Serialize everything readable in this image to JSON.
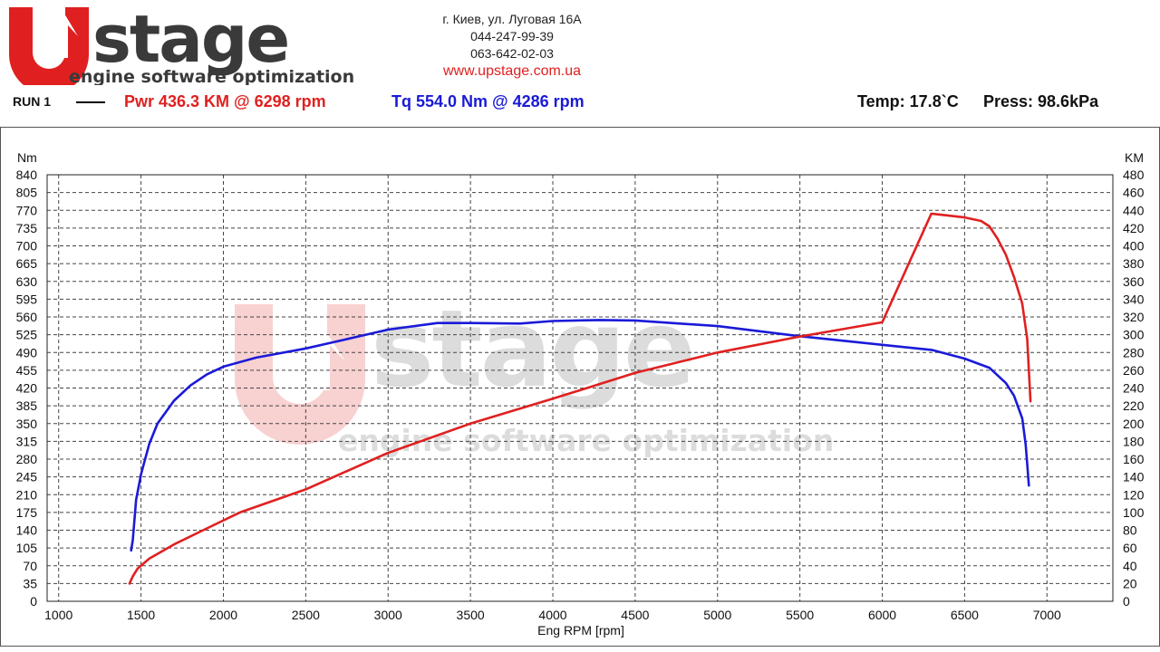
{
  "header": {
    "logo_main": "UPstage",
    "logo_sub": "engine software optimization",
    "address": "г. Киев, ул. Луговая 16А",
    "phone1": "044-247-99-39",
    "phone2": "063-642-02-03",
    "website": "www.upstage.com.ua"
  },
  "run": {
    "label": "RUN 1",
    "power_summary": "Pwr  436.3 KM @ 6298 rpm",
    "torque_summary": "Tq 554.0 Nm @ 4286 rpm",
    "temperature": "Temp: 17.8`C",
    "pressure": "Press: 98.6kPa"
  },
  "colors": {
    "power": "#e02020",
    "torque": "#1a1ad8"
  },
  "chart_data": {
    "type": "line",
    "xlabel": "Eng RPM [rpm]",
    "ylabel_left": "Nm",
    "ylabel_right": "KM",
    "xlim": [
      930,
      7400
    ],
    "ylim_left": [
      0,
      840
    ],
    "ylim_right": [
      0,
      480
    ],
    "x_ticks": [
      1000,
      1500,
      2000,
      2500,
      3000,
      3500,
      4000,
      4500,
      5000,
      5500,
      6000,
      6500,
      7000
    ],
    "y_ticks_left": [
      0,
      35,
      70,
      105,
      140,
      175,
      210,
      245,
      280,
      315,
      350,
      385,
      420,
      455,
      490,
      525,
      560,
      595,
      630,
      665,
      700,
      735,
      770,
      805,
      840
    ],
    "y_ticks_right": [
      0,
      20,
      40,
      60,
      80,
      100,
      120,
      140,
      160,
      180,
      200,
      220,
      240,
      260,
      280,
      300,
      320,
      340,
      360,
      380,
      400,
      420,
      440,
      460,
      480
    ],
    "grid": true,
    "watermark": {
      "main": "UPstage",
      "sub": "engine software optimization"
    },
    "series": [
      {
        "axis": "left",
        "x": [
          1440,
          1450,
          1470,
          1500,
          1550,
          1600,
          1700,
          1800,
          1900,
          2000,
          2200,
          2500,
          2800,
          3000,
          3300,
          3500,
          3800,
          4000,
          4286,
          4500,
          5000,
          5500,
          6000,
          6300,
          6500,
          6650,
          6750,
          6800,
          6850,
          6870,
          6880,
          6890
        ],
        "y": [
          100,
          120,
          200,
          250,
          310,
          350,
          395,
          425,
          447,
          462,
          480,
          498,
          520,
          535,
          548,
          548,
          547,
          552,
          554,
          553,
          542,
          522,
          505,
          495,
          478,
          460,
          430,
          405,
          360,
          310,
          270,
          228
        ]
      },
      {
        "axis": "right",
        "x": [
          1430,
          1450,
          1480,
          1550,
          1700,
          1900,
          2100,
          2500,
          3000,
          3500,
          4000,
          4500,
          5000,
          5500,
          6000,
          6298,
          6500,
          6600,
          6650,
          6700,
          6750,
          6800,
          6850,
          6880,
          6900
        ],
        "y": [
          20,
          28,
          37,
          48,
          64,
          82,
          100,
          126,
          167,
          200,
          228,
          257,
          280,
          298,
          314,
          436.3,
          432,
          428,
          422,
          408,
          390,
          365,
          335,
          295,
          225
        ]
      }
    ]
  }
}
